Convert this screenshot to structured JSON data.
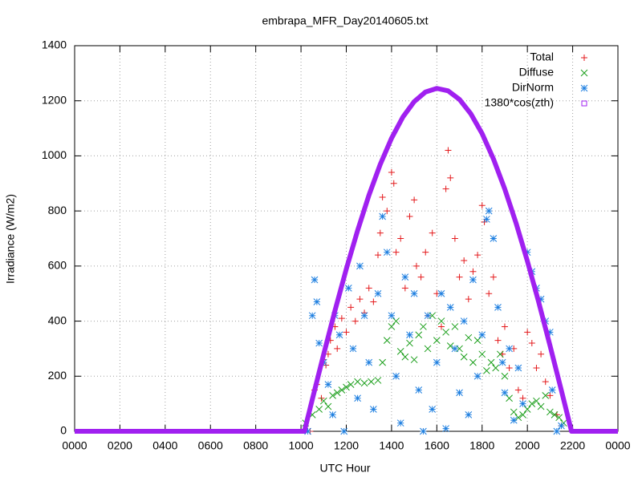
{
  "chart_data": {
    "type": "scatter",
    "title": "embrapa_MFR_Day20140605.txt",
    "x_label": "UTC Hour",
    "y_label": "Irradiance (W/m2)",
    "xlim": [
      0,
      24
    ],
    "ylim": [
      0,
      1400
    ],
    "xticks": [
      {
        "value": 0,
        "label": "0000"
      },
      {
        "value": 2,
        "label": "0200"
      },
      {
        "value": 4,
        "label": "0400"
      },
      {
        "value": 6,
        "label": "0600"
      },
      {
        "value": 8,
        "label": "0800"
      },
      {
        "value": 10,
        "label": "1000"
      },
      {
        "value": 12,
        "label": "1200"
      },
      {
        "value": 14,
        "label": "1400"
      },
      {
        "value": 16,
        "label": "1600"
      },
      {
        "value": 18,
        "label": "1800"
      },
      {
        "value": 20,
        "label": "2000"
      },
      {
        "value": 22,
        "label": "2200"
      },
      {
        "value": 24,
        "label": "0000"
      }
    ],
    "yticks": [
      0,
      200,
      400,
      600,
      800,
      1000,
      1200,
      1400
    ],
    "grid": true,
    "legend": "top-right",
    "series": [
      {
        "name": "Total",
        "color": "#e41a1c",
        "marker": "plus",
        "x": [
          10.4,
          10.6,
          10.7,
          10.9,
          11.0,
          11.1,
          11.2,
          11.3,
          11.5,
          11.6,
          11.8,
          12.0,
          12.2,
          12.4,
          12.6,
          12.8,
          13.0,
          13.2,
          13.4,
          13.5,
          13.6,
          13.8,
          14.0,
          14.1,
          14.2,
          14.4,
          14.6,
          14.8,
          15.0,
          15.1,
          15.3,
          15.5,
          15.6,
          15.8,
          16.0,
          16.2,
          16.4,
          16.5,
          16.6,
          16.8,
          17.0,
          17.2,
          17.4,
          17.6,
          17.8,
          18.0,
          18.1,
          18.3,
          18.5,
          18.7,
          18.9,
          19.0,
          19.2,
          19.4,
          19.6,
          19.8,
          20.0,
          20.2,
          20.4,
          20.6,
          20.8,
          21.0,
          21.3,
          21.5
        ],
        "values": [
          0,
          150,
          170,
          120,
          260,
          240,
          280,
          330,
          380,
          300,
          410,
          360,
          450,
          400,
          480,
          430,
          520,
          470,
          640,
          720,
          850,
          800,
          940,
          900,
          650,
          700,
          520,
          780,
          840,
          600,
          560,
          650,
          420,
          720,
          500,
          380,
          880,
          1020,
          920,
          700,
          560,
          620,
          480,
          580,
          640,
          820,
          760,
          500,
          560,
          330,
          280,
          380,
          230,
          300,
          150,
          120,
          360,
          320,
          230,
          280,
          180,
          130,
          60,
          20
        ]
      },
      {
        "name": "Diffuse",
        "color": "#1a9e1a",
        "marker": "cross",
        "x": [
          10.2,
          10.5,
          10.8,
          11.0,
          11.2,
          11.4,
          11.6,
          11.8,
          12.0,
          12.2,
          12.5,
          12.8,
          13.1,
          13.4,
          13.6,
          13.8,
          14.0,
          14.2,
          14.4,
          14.6,
          14.8,
          15.0,
          15.2,
          15.4,
          15.6,
          15.8,
          16.0,
          16.2,
          16.4,
          16.6,
          16.8,
          17.0,
          17.2,
          17.4,
          17.6,
          17.8,
          18.0,
          18.2,
          18.4,
          18.6,
          18.8,
          19.0,
          19.2,
          19.4,
          19.6,
          19.8,
          20.0,
          20.2,
          20.4,
          20.6,
          20.8,
          21.0,
          21.2,
          21.4,
          21.6
        ],
        "values": [
          30,
          60,
          80,
          110,
          90,
          130,
          140,
          150,
          160,
          170,
          180,
          175,
          180,
          185,
          250,
          330,
          380,
          400,
          290,
          270,
          320,
          260,
          350,
          380,
          300,
          420,
          330,
          400,
          360,
          310,
          380,
          300,
          270,
          340,
          250,
          330,
          280,
          220,
          250,
          230,
          280,
          200,
          120,
          70,
          50,
          60,
          80,
          100,
          110,
          90,
          130,
          70,
          60,
          50,
          30
        ]
      },
      {
        "name": "DirNorm",
        "color": "#1e7fe0",
        "marker": "star",
        "x": [
          10.3,
          10.5,
          10.6,
          10.7,
          10.8,
          11.0,
          11.2,
          11.4,
          11.5,
          11.7,
          11.9,
          12.1,
          12.3,
          12.5,
          12.6,
          12.8,
          13.0,
          13.2,
          13.4,
          13.6,
          13.8,
          14.0,
          14.2,
          14.4,
          14.6,
          14.8,
          15.0,
          15.2,
          15.4,
          15.6,
          15.8,
          16.0,
          16.2,
          16.4,
          16.6,
          16.8,
          17.0,
          17.2,
          17.4,
          17.6,
          17.8,
          18.0,
          18.2,
          18.3,
          18.5,
          18.7,
          18.9,
          19.0,
          19.2,
          19.4,
          19.6,
          19.8,
          20.0,
          20.2,
          20.4,
          20.6,
          20.8,
          21.0,
          21.1,
          21.3,
          21.5
        ],
        "values": [
          0,
          420,
          550,
          470,
          320,
          250,
          170,
          60,
          420,
          350,
          0,
          520,
          300,
          120,
          600,
          420,
          250,
          80,
          500,
          780,
          650,
          420,
          200,
          30,
          560,
          350,
          500,
          150,
          0,
          420,
          80,
          250,
          500,
          10,
          450,
          300,
          140,
          400,
          60,
          550,
          200,
          350,
          770,
          800,
          700,
          450,
          250,
          140,
          300,
          40,
          230,
          100,
          650,
          580,
          520,
          480,
          400,
          360,
          150,
          0,
          20
        ]
      },
      {
        "name": "1380*cos(zth)",
        "color": "#a020f0",
        "marker": "square",
        "x": [
          0,
          10.15,
          10.5,
          11,
          11.5,
          12,
          12.5,
          13,
          13.5,
          14,
          14.5,
          15,
          15.5,
          16,
          16.5,
          17,
          17.5,
          18,
          18.5,
          19,
          19.5,
          20,
          20.5,
          21,
          21.5,
          21.95,
          24
        ],
        "values": [
          0,
          0,
          116,
          279,
          438,
          589,
          729,
          857,
          969,
          1064,
          1141,
          1197,
          1232,
          1245,
          1236,
          1205,
          1153,
          1081,
          989,
          880,
          756,
          618,
          469,
          311,
          149,
          0,
          0
        ]
      }
    ]
  }
}
